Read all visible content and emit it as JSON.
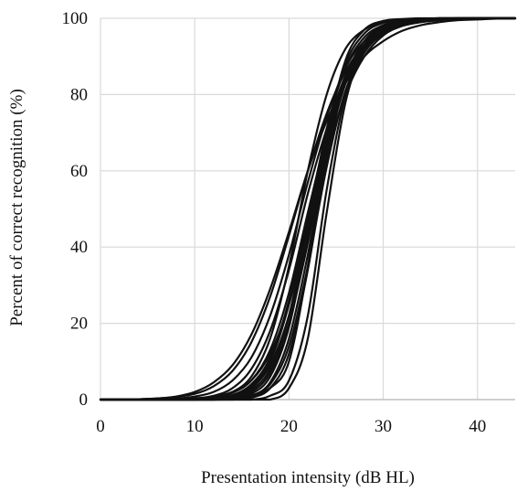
{
  "chart_data": {
    "type": "line",
    "title": "",
    "xlabel": "Presentation intensity (dB HL)",
    "ylabel": "Percent of correct recognition (%)",
    "xlim": [
      0,
      44
    ],
    "ylim": [
      0,
      100
    ],
    "xticks": [
      0,
      10,
      20,
      30,
      40
    ],
    "yticks": [
      0,
      20,
      40,
      60,
      80,
      100
    ],
    "grid": true,
    "legend": "none",
    "line_color": "#111111",
    "grid_color": "#d9d9d9",
    "x": [
      0,
      2,
      4,
      6,
      8,
      10,
      12,
      14,
      16,
      18,
      20,
      22,
      24,
      26,
      28,
      30,
      32,
      34,
      36,
      38,
      40,
      42,
      44
    ],
    "series": [
      {
        "values": [
          0,
          0,
          0.1,
          0.3,
          0.7,
          1.5,
          3.5,
          7.5,
          15,
          27,
          43,
          60,
          75,
          86,
          93,
          96.5,
          98.3,
          99.2,
          99.6,
          99.8,
          99.9,
          100,
          100
        ]
      },
      {
        "values": [
          0,
          0,
          0,
          0,
          0.1,
          0.3,
          0.8,
          2,
          5,
          12,
          25,
          45,
          67,
          83,
          92,
          96.5,
          98.5,
          99.4,
          99.7,
          99.9,
          100,
          100,
          100
        ]
      },
      {
        "values": [
          0,
          0,
          0,
          0,
          0,
          0,
          0,
          0.2,
          0.8,
          3,
          10,
          35,
          68,
          89,
          97,
          99.3,
          99.8,
          100,
          100,
          100,
          100,
          100,
          100
        ]
      },
      {
        "values": [
          0,
          0,
          0.1,
          0.3,
          0.8,
          2,
          4.5,
          9,
          17,
          29,
          44,
          60,
          73,
          83,
          90,
          94,
          96.7,
          98.2,
          99,
          99.5,
          99.7,
          99.9,
          100
        ]
      },
      {
        "values": [
          0,
          0,
          0,
          0,
          0,
          0.1,
          0.4,
          1.2,
          3.5,
          9,
          22,
          43,
          66,
          83,
          93,
          97.2,
          98.9,
          99.6,
          99.8,
          99.9,
          100,
          100,
          100
        ]
      },
      {
        "values": [
          0,
          0,
          0,
          0,
          0,
          0,
          0,
          0,
          0,
          1,
          5,
          22,
          55,
          80,
          93,
          97,
          98.5,
          99.3,
          99.7,
          100,
          100,
          100,
          100
        ]
      },
      {
        "values": [
          0,
          0,
          0,
          0,
          0,
          0.1,
          0.5,
          2,
          6,
          16,
          35,
          60,
          80,
          92,
          97,
          99,
          99.6,
          99.9,
          100,
          100,
          100,
          100,
          100
        ]
      },
      {
        "values": [
          0,
          0,
          0,
          0,
          0,
          0,
          0.1,
          0.6,
          2.5,
          8,
          22,
          46,
          71,
          87,
          95,
          98.2,
          99.4,
          99.8,
          100,
          100,
          100,
          100,
          100
        ]
      },
      {
        "values": [
          0,
          0,
          0,
          0,
          0,
          0,
          0,
          0.3,
          1.5,
          6,
          19,
          43,
          70,
          88,
          96,
          98.8,
          99.6,
          99.9,
          100,
          100,
          100,
          100,
          100
        ]
      },
      {
        "values": [
          0,
          0,
          0,
          0,
          0,
          0,
          0,
          0,
          0,
          0,
          3,
          16,
          49,
          78,
          92,
          97.5,
          99,
          99.6,
          99.9,
          100,
          100,
          100,
          100
        ]
      },
      {
        "values": [
          0,
          0,
          0,
          0,
          0.1,
          0.3,
          1,
          3,
          8,
          18,
          34,
          54,
          71,
          84,
          92,
          96,
          98,
          99,
          99.5,
          99.8,
          99.9,
          100,
          100
        ]
      },
      {
        "values": [
          0,
          0,
          0,
          0,
          0,
          0,
          0.2,
          1,
          3.5,
          10,
          25,
          47,
          68,
          83,
          92,
          96.5,
          98.5,
          99.3,
          99.7,
          99.9,
          100,
          100,
          100
        ]
      },
      {
        "values": [
          0,
          0,
          0,
          0.1,
          0.3,
          0.8,
          2,
          5,
          11,
          22,
          38,
          57,
          74,
          87,
          94,
          97.5,
          99,
          99.6,
          99.8,
          99.9,
          100,
          100,
          100
        ]
      },
      {
        "values": [
          0,
          0,
          0,
          0,
          0,
          0,
          0,
          0,
          0.5,
          3,
          12,
          34,
          63,
          84,
          94,
          98,
          99.4,
          99.8,
          100,
          100,
          100,
          100,
          100
        ]
      },
      {
        "values": [
          0,
          0,
          0,
          0,
          0,
          0.1,
          0.5,
          1.8,
          5,
          13,
          28,
          49,
          69,
          84,
          92,
          96,
          98,
          99,
          99.5,
          99.8,
          99.9,
          100,
          100
        ]
      },
      {
        "values": [
          0,
          0,
          0,
          0,
          0,
          0,
          0.1,
          0.5,
          2,
          7,
          20,
          41,
          65,
          83,
          93,
          97.5,
          99.2,
          99.7,
          99.9,
          100,
          100,
          100,
          100
        ]
      },
      {
        "values": [
          0,
          0,
          0,
          0,
          0,
          0,
          0,
          0.2,
          1,
          4.5,
          16,
          38,
          64,
          83,
          93,
          97.5,
          99,
          99.6,
          99.9,
          100,
          100,
          100,
          100
        ]
      },
      {
        "values": [
          0,
          0,
          0,
          0,
          0,
          0.1,
          0.3,
          1.2,
          4,
          11,
          26,
          48,
          70,
          85,
          93,
          97,
          98.8,
          99.5,
          99.8,
          99.9,
          100,
          100,
          100
        ]
      },
      {
        "values": [
          0,
          0,
          0,
          0,
          0,
          0,
          0,
          0.1,
          0.8,
          4,
          14,
          35,
          61,
          81,
          91,
          96,
          98.3,
          99.3,
          99.7,
          99.9,
          100,
          100,
          100
        ]
      },
      {
        "values": [
          0,
          0,
          0,
          0,
          0,
          0,
          0.2,
          0.8,
          3,
          9,
          22,
          42,
          64,
          80,
          90,
          95.5,
          98,
          99.2,
          99.7,
          99.9,
          100,
          100,
          100
        ]
      }
    ]
  }
}
